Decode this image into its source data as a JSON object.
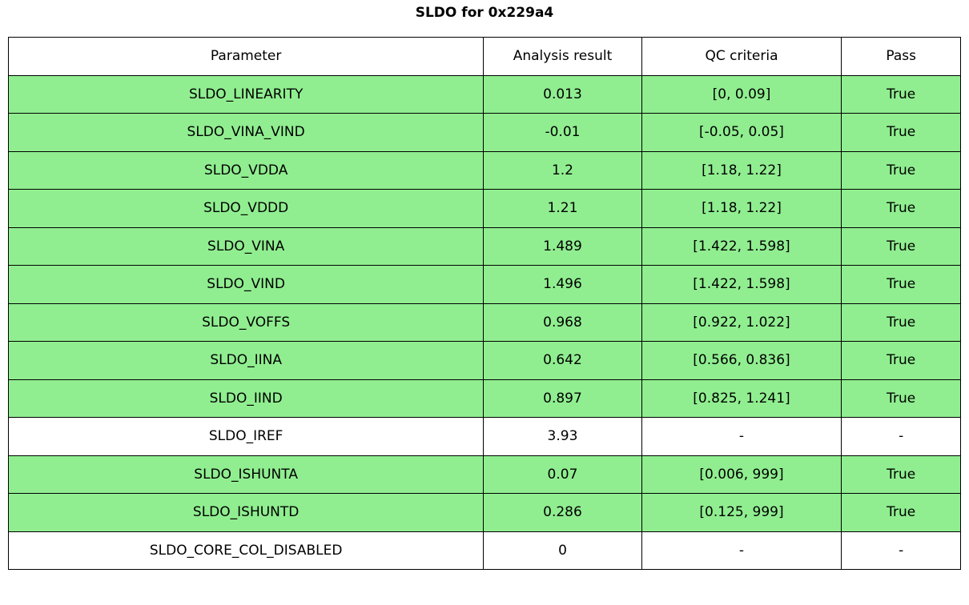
{
  "title": "SLDO for 0x229a4",
  "table": {
    "headers": {
      "parameter": "Parameter",
      "result": "Analysis result",
      "criteria": "QC criteria",
      "pass": "Pass"
    },
    "rows": [
      {
        "parameter": "SLDO_LINEARITY",
        "result": "0.013",
        "criteria": "[0, 0.09]",
        "pass": "True",
        "highlight": true
      },
      {
        "parameter": "SLDO_VINA_VIND",
        "result": "-0.01",
        "criteria": "[-0.05, 0.05]",
        "pass": "True",
        "highlight": true
      },
      {
        "parameter": "SLDO_VDDA",
        "result": "1.2",
        "criteria": "[1.18, 1.22]",
        "pass": "True",
        "highlight": true
      },
      {
        "parameter": "SLDO_VDDD",
        "result": "1.21",
        "criteria": "[1.18, 1.22]",
        "pass": "True",
        "highlight": true
      },
      {
        "parameter": "SLDO_VINA",
        "result": "1.489",
        "criteria": "[1.422, 1.598]",
        "pass": "True",
        "highlight": true
      },
      {
        "parameter": "SLDO_VIND",
        "result": "1.496",
        "criteria": "[1.422, 1.598]",
        "pass": "True",
        "highlight": true
      },
      {
        "parameter": "SLDO_VOFFS",
        "result": "0.968",
        "criteria": "[0.922, 1.022]",
        "pass": "True",
        "highlight": true
      },
      {
        "parameter": "SLDO_IINA",
        "result": "0.642",
        "criteria": "[0.566, 0.836]",
        "pass": "True",
        "highlight": true
      },
      {
        "parameter": "SLDO_IIND",
        "result": "0.897",
        "criteria": "[0.825, 1.241]",
        "pass": "True",
        "highlight": true
      },
      {
        "parameter": "SLDO_IREF",
        "result": "3.93",
        "criteria": "-",
        "pass": "-",
        "highlight": false
      },
      {
        "parameter": "SLDO_ISHUNTA",
        "result": "0.07",
        "criteria": "[0.006, 999]",
        "pass": "True",
        "highlight": true
      },
      {
        "parameter": "SLDO_ISHUNTD",
        "result": "0.286",
        "criteria": "[0.125, 999]",
        "pass": "True",
        "highlight": true
      },
      {
        "parameter": "SLDO_CORE_COL_DISABLED",
        "result": "0",
        "criteria": "-",
        "pass": "-",
        "highlight": false
      }
    ]
  },
  "colors": {
    "pass_row_green": "#90ee90",
    "border": "#000000",
    "background": "#ffffff"
  }
}
